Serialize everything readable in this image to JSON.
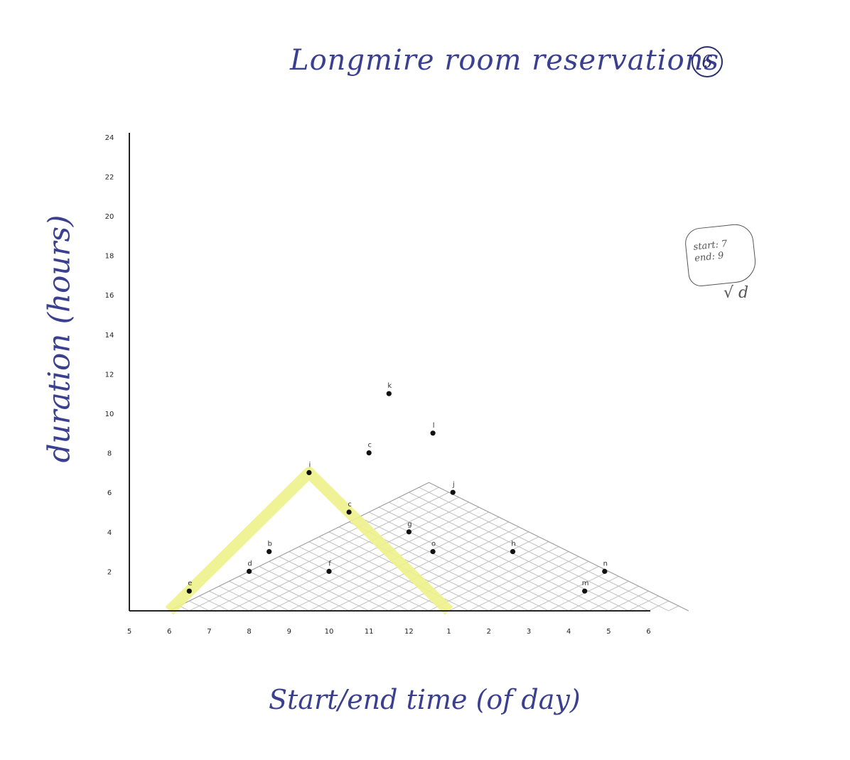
{
  "title": "Longmire room reservations",
  "page_number": "6",
  "note": {
    "line1": "start: 7",
    "line2": "end: 9",
    "check": "√ d"
  },
  "chart_data": {
    "type": "scatter",
    "title": "Longmire room reservations",
    "xlabel": "Start/end time (of day)",
    "ylabel": "duration (hours)",
    "xlim": [
      5,
      6
    ],
    "ylim": [
      0,
      24
    ],
    "x_ticks": [
      "5",
      "6",
      "7",
      "8",
      "9",
      "10",
      "11",
      "12",
      "1",
      "2",
      "3",
      "4",
      "5",
      "6"
    ],
    "y_ticks": [
      "2",
      "4",
      "6",
      "8",
      "10",
      "12",
      "14",
      "16",
      "18",
      "20",
      "22",
      "24"
    ],
    "grid": "diagonal interval grid under triangle from 6 to 6",
    "points": [
      {
        "label": "e",
        "x": 6.5,
        "y": 1
      },
      {
        "label": "d",
        "x": 8.0,
        "y": 2
      },
      {
        "label": "b",
        "x": 8.5,
        "y": 3
      },
      {
        "label": "i",
        "x": 9.5,
        "y": 7
      },
      {
        "label": "f",
        "x": 10.0,
        "y": 2
      },
      {
        "label": "c",
        "x": 10.5,
        "y": 5
      },
      {
        "label": "c",
        "x": 11.0,
        "y": 8
      },
      {
        "label": "k",
        "x": 11.5,
        "y": 11
      },
      {
        "label": "g",
        "x": 12.0,
        "y": 4
      },
      {
        "label": "o",
        "x": 12.6,
        "y": 3
      },
      {
        "label": "l",
        "x": 12.6,
        "y": 9
      },
      {
        "label": "j",
        "x": 13.1,
        "y": 6
      },
      {
        "label": "h",
        "x": 14.6,
        "y": 3
      },
      {
        "label": "m",
        "x": 16.4,
        "y": 1
      },
      {
        "label": "n",
        "x": 16.9,
        "y": 2
      }
    ],
    "highlight": {
      "color": "#eef28a",
      "path": [
        [
          6.0,
          0
        ],
        [
          9.5,
          7
        ],
        [
          13.0,
          0
        ]
      ]
    }
  }
}
